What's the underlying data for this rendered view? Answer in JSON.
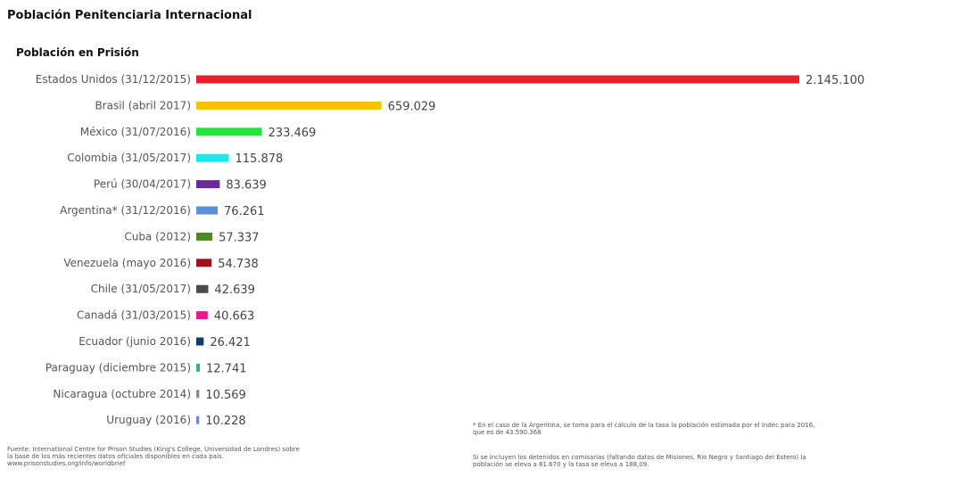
{
  "header": {
    "title": "Población Penitenciaria Internacional",
    "subtitle": "Población en Prisión"
  },
  "chart_data": {
    "type": "bar",
    "orientation": "horizontal",
    "title": "Población Penitenciaria Internacional",
    "subtitle": "Población en Prisión",
    "xlabel": "",
    "ylabel": "",
    "xlim": [
      0,
      2145100
    ],
    "grid": false,
    "categories": [
      "Estados Unidos (31/12/2015)",
      "Brasil (abril 2017)",
      "México (31/07/2016)",
      "Colombia (31/05/2017)",
      "Perú (30/04/2017)",
      "Argentina* (31/12/2016)",
      "Cuba (2012)",
      "Venezuela (mayo 2016)",
      "Chile (31/05/2017)",
      "Canadá (31/03/2015)",
      "Ecuador (junio 2016)",
      "Paraguay (diciembre 2015)",
      "Nicaragua (octubre 2014)",
      "Uruguay (2016)"
    ],
    "values": [
      2145100,
      659029,
      233469,
      115878,
      83639,
      76261,
      57337,
      54738,
      42639,
      40663,
      26421,
      12741,
      10569,
      10228
    ],
    "value_labels": [
      "2.145.100",
      "659.029",
      "233.469",
      "115.878",
      "83.639",
      "76.261",
      "57.337",
      "54.738",
      "42.639",
      "40.663",
      "26.421",
      "12.741",
      "10.569",
      "10.228"
    ],
    "colors": [
      "#e8202a",
      "#f2c500",
      "#1ee63c",
      "#19e8ee",
      "#6a2a9a",
      "#5b8fd6",
      "#4a8a22",
      "#9e1020",
      "#4e4a48",
      "#e8168f",
      "#0f3d6e",
      "#2eb78a",
      "#8a8a8a",
      "#6a8ad0"
    ]
  },
  "footnotes": {
    "source": [
      "Fuente: International Centre for Prison Studies (King's College, Universidad de Londres) sobre",
      "la base de los más recientes datos oficiales disponibles en cada país.",
      "www.prisonstudies.org/info/worldbrief"
    ],
    "note1": [
      "* En el caso de la Argentina, se toma para el cálculo de la tasa la población estimada por el Indec para 2016,",
      "que es de 43.590.368"
    ],
    "note2": [
      "Si se incluyen los detenidos en comisarías (faltando datos de Misiones, Río Negro y Santiago del Estero) la",
      "población se eleva a 81.670 y la tasa se eleva a 188,09."
    ]
  }
}
